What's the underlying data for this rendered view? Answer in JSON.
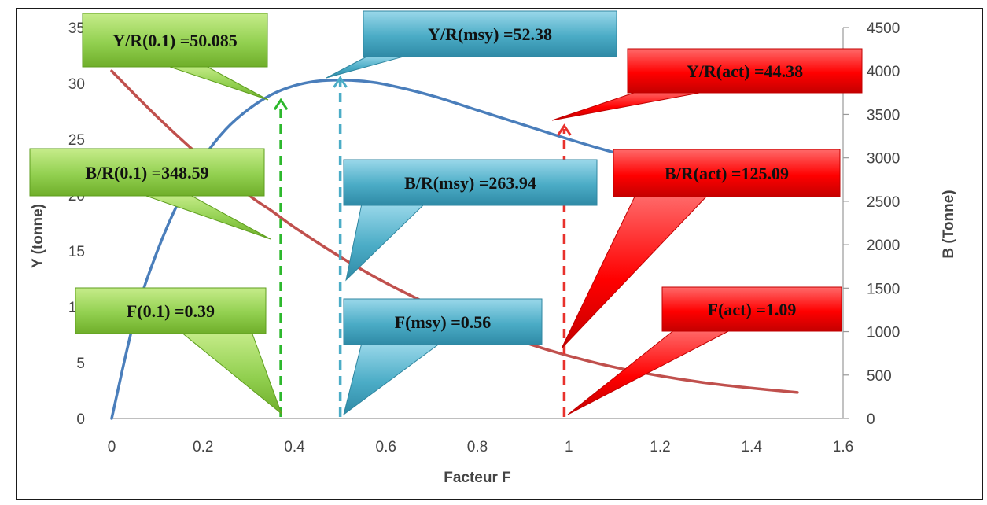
{
  "chart_data": {
    "type": "line",
    "title": "",
    "xlabel": "Facteur F",
    "ylabel_left": "Y (tonne)",
    "ylabel_right": "B (Tonne)",
    "xlim": [
      0,
      1.6
    ],
    "ylim_left": [
      0,
      35
    ],
    "ylim_right": [
      0,
      4500
    ],
    "x_ticks": [
      "0",
      "0.2",
      "0.4",
      "0.6",
      "0.8",
      "1",
      "1.2",
      "1.4",
      "1.6"
    ],
    "y_left_ticks": [
      "0",
      "5",
      "10",
      "15",
      "20",
      "25",
      "30",
      "35"
    ],
    "y_right_ticks": [
      "0",
      "500",
      "1000",
      "1500",
      "2000",
      "2500",
      "3000",
      "3500",
      "4000",
      "4500"
    ],
    "grid": false,
    "series": [
      {
        "name": "",
        "axis": "left",
        "color": "#4a7ebb",
        "x": [
          0,
          0.05,
          0.1,
          0.15,
          0.2,
          0.25,
          0.3,
          0.35,
          0.4,
          0.45,
          0.5,
          0.55,
          0.6,
          0.7,
          0.8,
          0.9,
          1.0,
          1.1,
          1.2
        ],
        "y": [
          0,
          8.9,
          15.0,
          19.7,
          23.3,
          25.9,
          27.7,
          29.0,
          29.8,
          30.2,
          30.3,
          30.2,
          29.9,
          28.9,
          27.6,
          26.3,
          25.0,
          23.8,
          22.8
        ]
      },
      {
        "name": "",
        "axis": "right",
        "color": "#c0504d",
        "x": [
          0,
          0.1,
          0.2,
          0.3,
          0.35,
          0.4,
          0.5,
          0.6,
          0.7,
          0.8,
          0.9,
          1.0,
          1.1,
          1.2,
          1.3,
          1.4,
          1.5
        ],
        "y": [
          4000,
          3470,
          2990,
          2570,
          2390,
          2200,
          1860,
          1560,
          1300,
          1070,
          880,
          720,
          590,
          490,
          410,
          350,
          300
        ]
      }
    ],
    "reference_lines": [
      {
        "x": 0.37,
        "color": "#2db82d",
        "axis": "left",
        "top": 28.5
      },
      {
        "x": 0.5,
        "color": "#4bacc6",
        "axis": "left",
        "top": 30.5
      },
      {
        "x": 0.99,
        "color": "#e8312c",
        "axis": "left",
        "top": 26.2
      }
    ],
    "callouts": [
      {
        "text": "Y/R(0.1)  =50.085",
        "group": "green"
      },
      {
        "text": "B/R(0.1) =348.59",
        "group": "green"
      },
      {
        "text": "F(0.1) =0.39",
        "group": "green"
      },
      {
        "text": "Y/R(msy)  =52.38",
        "group": "blue"
      },
      {
        "text": "B/R(msy) =263.94",
        "group": "blue"
      },
      {
        "text": "F(msy)  =0.56",
        "group": "blue"
      },
      {
        "text": "Y/R(act)  =44.38",
        "group": "red"
      },
      {
        "text": "B/R(act) =125.09",
        "group": "red"
      },
      {
        "text": "F(act)  =1.09",
        "group": "red"
      }
    ],
    "colors": {
      "green_fill": "#92d050",
      "green_dark": "#5e9e1e",
      "blue_fill": "#4bacc6",
      "blue_dark": "#2f86a0",
      "red_fill": "#ff0000",
      "red_dark": "#c00000"
    }
  }
}
